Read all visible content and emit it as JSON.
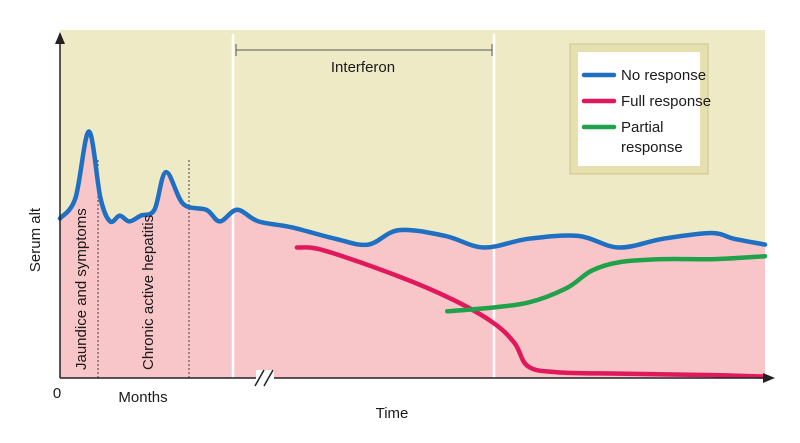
{
  "chart_data": {
    "type": "line",
    "title": "",
    "xlabel": "Time",
    "ylabel": "Serum alt",
    "x_origin_label": "0",
    "x_segment_label": "Months",
    "axis_break": true,
    "grid": false,
    "legend_position": "top-right",
    "colors": {
      "background": "#efeac6",
      "fill": "#f8c5c8",
      "legend_box": "#e6dfae",
      "legend_border": "#cdc48e"
    },
    "phases": [
      {
        "name": "jaundice",
        "label": "Jaundice and symptoms"
      },
      {
        "name": "chronic",
        "label": "Chronic active hepatitis"
      }
    ],
    "treatment": {
      "label": "Interferon"
    },
    "series": [
      {
        "name": "No response",
        "color": "#1f6fc2",
        "points": [
          [
            0,
            0.55
          ],
          [
            0.8,
            0.62
          ],
          [
            1.5,
            0.85
          ],
          [
            2.1,
            0.62
          ],
          [
            2.6,
            0.54
          ],
          [
            3.1,
            0.56
          ],
          [
            3.6,
            0.54
          ],
          [
            4.2,
            0.56
          ],
          [
            4.9,
            0.58
          ],
          [
            5.5,
            0.71
          ],
          [
            6.4,
            0.6
          ],
          [
            7.6,
            0.58
          ],
          [
            8.3,
            0.54
          ],
          [
            9.2,
            0.58
          ],
          [
            10.3,
            0.54
          ],
          [
            12,
            0.52
          ],
          [
            14.3,
            0.48
          ],
          [
            16,
            0.46
          ],
          [
            17.6,
            0.51
          ],
          [
            20,
            0.49
          ],
          [
            22,
            0.45
          ],
          [
            24.3,
            0.48
          ],
          [
            26.9,
            0.49
          ],
          [
            29,
            0.45
          ],
          [
            31.3,
            0.48
          ],
          [
            33.8,
            0.5
          ],
          [
            35,
            0.48
          ],
          [
            36.6,
            0.46
          ]
        ]
      },
      {
        "name": "Full response",
        "color": "#e0195c",
        "points": [
          [
            12.3,
            0.45
          ],
          [
            13.7,
            0.44
          ],
          [
            17.6,
            0.35
          ],
          [
            20.4,
            0.27
          ],
          [
            22.5,
            0.19
          ],
          [
            23.6,
            0.12
          ],
          [
            24.3,
            0.04
          ],
          [
            25.8,
            0.02
          ],
          [
            29,
            0.015
          ],
          [
            34,
            0.01
          ],
          [
            36.6,
            0.005
          ]
        ]
      },
      {
        "name": "Partial response",
        "color": "#1fa24a",
        "points": [
          [
            20.1,
            0.23
          ],
          [
            22,
            0.24
          ],
          [
            24.3,
            0.26
          ],
          [
            26.3,
            0.31
          ],
          [
            27.6,
            0.37
          ],
          [
            29.1,
            0.4
          ],
          [
            31.3,
            0.41
          ],
          [
            34,
            0.41
          ],
          [
            36.6,
            0.42
          ]
        ]
      }
    ]
  }
}
